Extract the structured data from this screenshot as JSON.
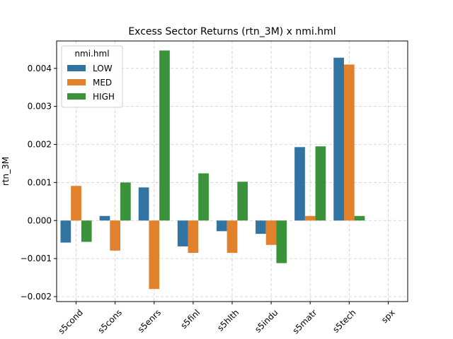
{
  "chart_data": {
    "type": "bar",
    "title": "Excess Sector Returns (rtn_3M) x nmi.hml",
    "xlabel": "",
    "ylabel": "rtn_3M",
    "categories": [
      "s5cond",
      "s5cons",
      "s5enrs",
      "s5finl",
      "s5hlth",
      "s5indu",
      "s5matr",
      "s5tech",
      "spx"
    ],
    "series": [
      {
        "name": "LOW",
        "color": "#3274a1",
        "values": [
          -0.00058,
          0.00012,
          0.00087,
          -0.00068,
          -0.00028,
          -0.00035,
          0.00193,
          0.00428,
          null
        ]
      },
      {
        "name": "MED",
        "color": "#e1812c",
        "values": [
          0.00091,
          -0.00079,
          -0.0018,
          -0.00085,
          -0.00085,
          -0.00064,
          0.00012,
          0.0041,
          null
        ]
      },
      {
        "name": "HIGH",
        "color": "#3a923a",
        "values": [
          -0.00056,
          0.001,
          0.00447,
          0.00124,
          0.00102,
          -0.00112,
          0.00195,
          0.00012,
          null
        ]
      }
    ],
    "yticks": [
      -0.002,
      -0.001,
      0.0,
      0.001,
      0.002,
      0.003,
      0.004
    ],
    "ytick_labels": [
      "−0.002",
      "−0.001",
      "0.000",
      "0.001",
      "0.002",
      "0.003",
      "0.004"
    ],
    "ylim": [
      -0.00213,
      0.00472
    ],
    "grid": true,
    "legend": {
      "title": "nmi.hml",
      "placement": "top-left"
    }
  }
}
